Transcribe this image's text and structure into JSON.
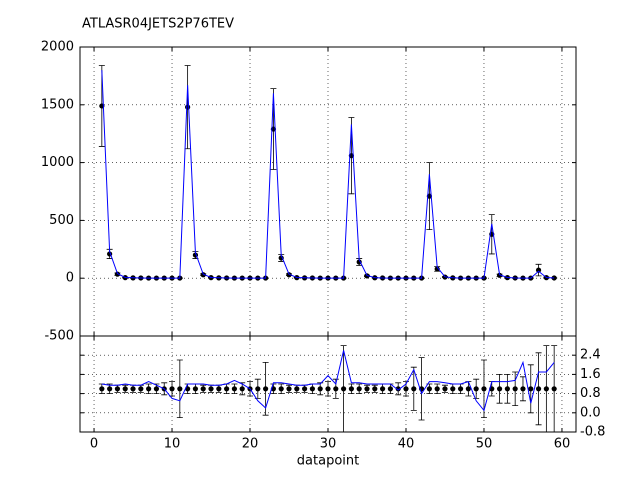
{
  "chart_data": [
    {
      "type": "errorbar",
      "title": "ATLASR04JETS2P76TEV",
      "x": [
        1,
        2,
        3,
        4,
        5,
        6,
        7,
        8,
        9,
        10,
        11,
        12,
        13,
        14,
        15,
        16,
        17,
        18,
        19,
        20,
        21,
        22,
        23,
        24,
        25,
        26,
        27,
        28,
        29,
        30,
        31,
        32,
        33,
        34,
        35,
        36,
        37,
        38,
        39,
        40,
        41,
        42,
        43,
        44,
        45,
        46,
        47,
        48,
        49,
        50,
        51,
        52,
        53,
        54,
        55,
        56,
        57,
        58,
        59
      ],
      "xlim": [
        -1.8,
        61.8
      ],
      "xticks": [
        0,
        10,
        20,
        30,
        40,
        50,
        60
      ],
      "show_xticklabels": false,
      "ylim": [
        -500,
        2000
      ],
      "yticks": [
        -500,
        0,
        500,
        1000,
        1500,
        2000
      ],
      "grid": true,
      "series": [
        {
          "color": "#000000",
          "values": [
            1490,
            210,
            35,
            5,
            3,
            2,
            1,
            1,
            1,
            1,
            1,
            1480,
            200,
            30,
            5,
            3,
            2,
            1,
            1,
            1,
            1,
            1,
            1290,
            175,
            30,
            5,
            3,
            2,
            1,
            1,
            1,
            1,
            1060,
            140,
            20,
            4,
            2,
            1,
            1,
            1,
            1,
            1,
            710,
            80,
            10,
            3,
            1,
            1,
            1,
            1,
            380,
            25,
            5,
            2,
            1,
            1,
            70,
            5,
            2
          ],
          "errors": [
            350,
            40,
            10,
            3,
            2,
            2,
            1,
            1,
            1,
            1,
            1,
            360,
            30,
            8,
            3,
            2,
            2,
            1,
            1,
            1,
            1,
            1,
            350,
            30,
            8,
            3,
            2,
            2,
            1,
            1,
            1,
            1,
            330,
            30,
            6,
            3,
            2,
            1,
            1,
            1,
            1,
            1,
            290,
            20,
            5,
            2,
            1,
            1,
            1,
            1,
            170,
            10,
            3,
            2,
            1,
            1,
            50,
            5,
            2
          ]
        },
        {
          "color": "#0000ff",
          "values": [
            1800,
            230,
            40,
            6,
            4,
            2,
            1,
            1,
            1,
            1,
            1,
            1670,
            220,
            35,
            6,
            4,
            2,
            1,
            1,
            1,
            1,
            1,
            1600,
            200,
            35,
            6,
            4,
            2,
            1,
            1,
            1,
            1,
            1330,
            160,
            24,
            5,
            2,
            1,
            1,
            1,
            1,
            1,
            900,
            95,
            12,
            4,
            1,
            1,
            1,
            1,
            470,
            30,
            6,
            2,
            1,
            1,
            60,
            6,
            2
          ]
        }
      ]
    },
    {
      "type": "errorbar",
      "x_label": "datapoint",
      "x": [
        1,
        2,
        3,
        4,
        5,
        6,
        7,
        8,
        9,
        10,
        11,
        12,
        13,
        14,
        15,
        16,
        17,
        18,
        19,
        20,
        21,
        22,
        23,
        24,
        25,
        26,
        27,
        28,
        29,
        30,
        31,
        32,
        33,
        34,
        35,
        36,
        37,
        38,
        39,
        40,
        41,
        42,
        43,
        44,
        45,
        46,
        47,
        48,
        49,
        50,
        51,
        52,
        53,
        54,
        55,
        56,
        57,
        58,
        59
      ],
      "xlim": [
        -1.8,
        61.8
      ],
      "xticks": [
        0,
        10,
        20,
        30,
        40,
        50,
        60
      ],
      "show_xticklabels": true,
      "ylim": [
        -0.8,
        3.2
      ],
      "yticks": [
        -0.8,
        {
          "value": 0,
          "label": "0.0"
        },
        0.8,
        1.6,
        2.4
      ],
      "y_axis_side": "right",
      "grid": true,
      "series": [
        {
          "color": "#000000",
          "values": [
            1,
            1,
            1,
            1,
            1,
            1,
            1,
            1,
            1,
            1,
            1,
            1,
            1,
            1,
            1,
            1,
            1,
            1,
            1,
            1,
            1,
            1,
            1,
            1,
            1,
            1,
            1,
            1,
            1,
            1,
            1,
            1,
            1,
            1,
            1,
            1,
            1,
            1,
            1,
            1,
            1,
            1,
            1,
            1,
            1,
            1,
            1,
            1,
            1,
            1,
            1,
            1,
            1,
            1,
            1,
            1,
            1,
            1,
            1
          ],
          "errors": [
            0.2,
            0.2,
            0.15,
            0.15,
            0.15,
            0.15,
            0.2,
            0.2,
            0.25,
            0.3,
            1.2,
            0.2,
            0.2,
            0.15,
            0.15,
            0.15,
            0.2,
            0.2,
            0.25,
            0.3,
            0.4,
            1.1,
            0.2,
            0.2,
            0.15,
            0.15,
            0.15,
            0.2,
            0.25,
            0.3,
            0.4,
            1.8,
            0.2,
            0.2,
            0.15,
            0.15,
            0.2,
            0.2,
            0.25,
            0.3,
            0.9,
            1.3,
            0.2,
            0.2,
            0.15,
            0.2,
            0.2,
            0.3,
            0.4,
            1.2,
            0.3,
            0.6,
            0.6,
            0.7,
            0.5,
            1.0,
            1.5,
            1.8,
            1.8
          ]
        },
        {
          "color": "#0000ff",
          "values": [
            1.2,
            1.15,
            1.15,
            1.2,
            1.15,
            1.15,
            1.3,
            1.15,
            1.0,
            0.6,
            0.5,
            1.2,
            1.2,
            1.2,
            1.15,
            1.15,
            1.2,
            1.35,
            1.2,
            1.0,
            0.5,
            0.2,
            1.25,
            1.25,
            1.2,
            1.15,
            1.15,
            1.2,
            1.2,
            1.55,
            1.2,
            2.6,
            1.25,
            1.25,
            1.2,
            1.2,
            1.2,
            1.2,
            0.95,
            1.2,
            1.8,
            0.8,
            1.3,
            1.3,
            1.25,
            1.2,
            1.2,
            1.3,
            0.5,
            0.1,
            1.3,
            1.3,
            1.3,
            1.35,
            2.1,
            0.4,
            1.7,
            1.7,
            2.1
          ]
        }
      ]
    }
  ]
}
